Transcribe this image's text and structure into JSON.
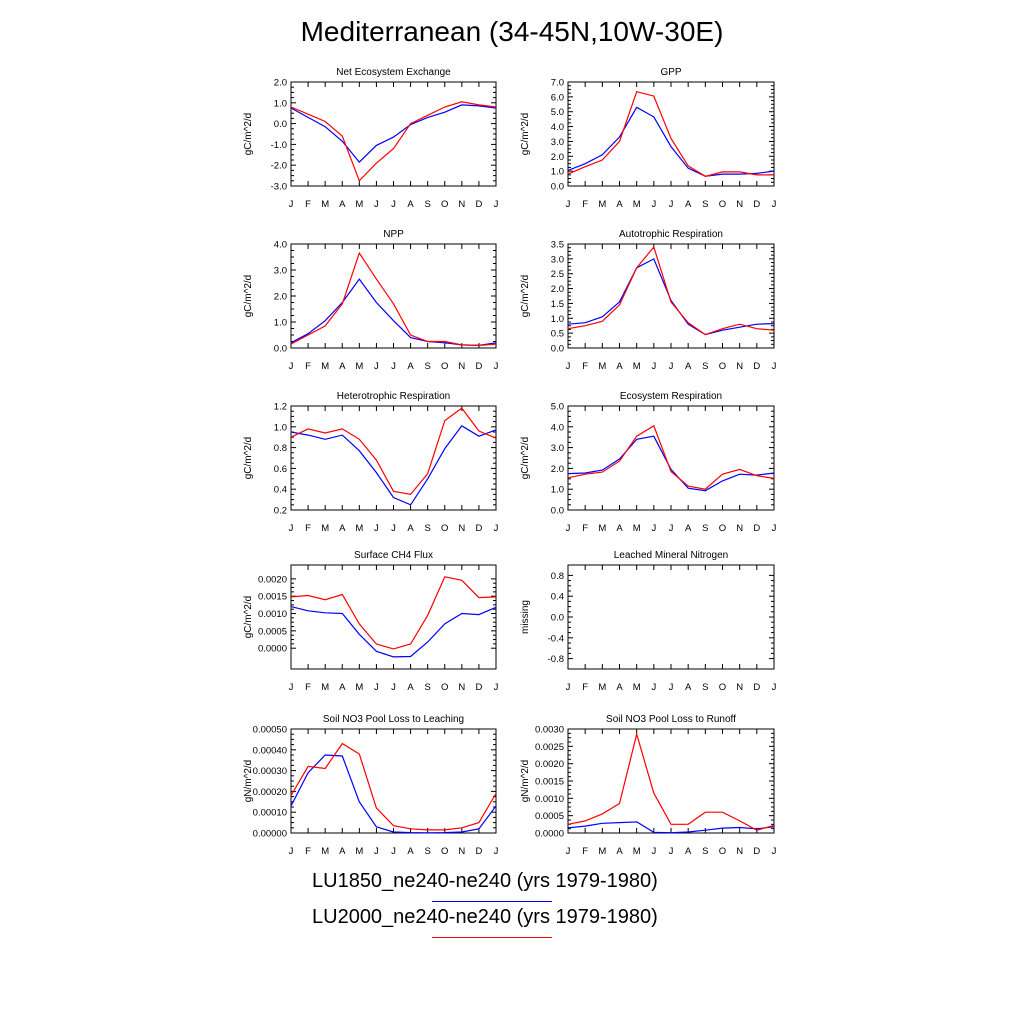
{
  "title": "Mediterranean (34-45N,10W-30E)",
  "colors": {
    "LU1850": "#0000ff",
    "LU2000": "#ff0000"
  },
  "legend": [
    {
      "label": "LU1850_ne240-ne240 (yrs 1979-1980)",
      "color": "#0000ff"
    },
    {
      "label": "LU2000_ne240-ne240 (yrs 1979-1980)",
      "color": "#ff0000"
    }
  ],
  "chart_data": [
    {
      "type": "line",
      "title": "Net Ecosystem Exchange",
      "ylabel": "gC/m^2/d",
      "x": [
        "J",
        "F",
        "M",
        "A",
        "M",
        "J",
        "J",
        "A",
        "S",
        "O",
        "N",
        "D",
        "J"
      ],
      "ylim": [
        -3.0,
        2.0
      ],
      "yticks": [
        -3.0,
        -2.0,
        -1.0,
        0.0,
        1.0,
        2.0
      ],
      "ytick_labels": [
        "-3.0",
        "-2.0",
        "-1.0",
        "0.0",
        "1.0",
        "2.0"
      ],
      "series": [
        {
          "name": "LU1850_ne240-ne240 (yrs 1979-1980)",
          "values": [
            0.75,
            0.3,
            -0.15,
            -0.85,
            -1.85,
            -1.05,
            -0.65,
            -0.05,
            0.3,
            0.55,
            0.9,
            0.85,
            0.75
          ]
        },
        {
          "name": "LU2000_ne240-ne240 (yrs 1979-1980)",
          "values": [
            0.8,
            0.45,
            0.1,
            -0.6,
            -2.75,
            -1.9,
            -1.2,
            0.0,
            0.4,
            0.8,
            1.05,
            0.9,
            0.8
          ]
        }
      ]
    },
    {
      "type": "line",
      "title": "GPP",
      "ylabel": "gC/m^2/d",
      "x": [
        "J",
        "F",
        "M",
        "A",
        "M",
        "J",
        "J",
        "A",
        "S",
        "O",
        "N",
        "D",
        "J"
      ],
      "ylim": [
        0.0,
        7.0
      ],
      "yticks": [
        0,
        1,
        2,
        3,
        4,
        5,
        6,
        7
      ],
      "ytick_labels": [
        "0.0",
        "1.0",
        "2.0",
        "3.0",
        "4.0",
        "5.0",
        "6.0",
        "7.0"
      ],
      "series": [
        {
          "name": "LU1850_ne240-ne240 (yrs 1979-1980)",
          "values": [
            1.05,
            1.5,
            2.1,
            3.3,
            5.3,
            4.65,
            2.65,
            1.2,
            0.65,
            0.8,
            0.8,
            0.85,
            1.0
          ]
        },
        {
          "name": "LU2000_ne240-ne240 (yrs 1979-1980)",
          "values": [
            0.8,
            1.3,
            1.75,
            3.0,
            6.35,
            6.05,
            3.2,
            1.35,
            0.65,
            0.95,
            0.95,
            0.75,
            0.75
          ]
        }
      ]
    },
    {
      "type": "line",
      "title": "NPP",
      "ylabel": "gC/m^2/d",
      "x": [
        "J",
        "F",
        "M",
        "A",
        "M",
        "J",
        "J",
        "A",
        "S",
        "O",
        "N",
        "D",
        "J"
      ],
      "ylim": [
        0.0,
        4.0
      ],
      "yticks": [
        0,
        1,
        2,
        3,
        4
      ],
      "ytick_labels": [
        "0.0",
        "1.0",
        "2.0",
        "3.0",
        "4.0"
      ],
      "series": [
        {
          "name": "LU1850_ne240-ne240 (yrs 1979-1980)",
          "values": [
            0.2,
            0.55,
            1.05,
            1.75,
            2.65,
            1.75,
            1.05,
            0.4,
            0.25,
            0.2,
            0.12,
            0.1,
            0.2
          ]
        },
        {
          "name": "LU2000_ne240-ne240 (yrs 1979-1980)",
          "values": [
            0.15,
            0.5,
            0.85,
            1.7,
            3.65,
            2.65,
            1.7,
            0.5,
            0.25,
            0.25,
            0.12,
            0.1,
            0.15
          ]
        }
      ]
    },
    {
      "type": "line",
      "title": "Autotrophic Respiration",
      "ylabel": "gC/m^2/d",
      "x": [
        "J",
        "F",
        "M",
        "A",
        "M",
        "J",
        "J",
        "A",
        "S",
        "O",
        "N",
        "D",
        "J"
      ],
      "ylim": [
        0.0,
        3.5
      ],
      "yticks": [
        0,
        0.5,
        1,
        1.5,
        2,
        2.5,
        3,
        3.5
      ],
      "ytick_labels": [
        "0.0",
        "0.5",
        "1.0",
        "1.5",
        "2.0",
        "2.5",
        "3.0",
        "3.5"
      ],
      "series": [
        {
          "name": "LU1850_ne240-ne240 (yrs 1979-1980)",
          "values": [
            0.8,
            0.85,
            1.05,
            1.55,
            2.7,
            3.0,
            1.6,
            0.8,
            0.45,
            0.6,
            0.7,
            0.8,
            0.82
          ]
        },
        {
          "name": "LU2000_ne240-ne240 (yrs 1979-1980)",
          "values": [
            0.65,
            0.75,
            0.9,
            1.45,
            2.7,
            3.4,
            1.55,
            0.85,
            0.45,
            0.65,
            0.8,
            0.65,
            0.6
          ]
        }
      ]
    },
    {
      "type": "line",
      "title": "Heterotrophic Respiration",
      "ylabel": "gC/m^2/d",
      "x": [
        "J",
        "F",
        "M",
        "A",
        "M",
        "J",
        "J",
        "A",
        "S",
        "O",
        "N",
        "D",
        "J"
      ],
      "ylim": [
        0.2,
        1.2
      ],
      "yticks": [
        0.2,
        0.4,
        0.6,
        0.8,
        1.0,
        1.2
      ],
      "ytick_labels": [
        "0.2",
        "0.4",
        "0.6",
        "0.8",
        "1.0",
        "1.2"
      ],
      "series": [
        {
          "name": "LU1850_ne240-ne240 (yrs 1979-1980)",
          "values": [
            0.95,
            0.92,
            0.88,
            0.92,
            0.77,
            0.56,
            0.32,
            0.25,
            0.5,
            0.79,
            1.01,
            0.91,
            0.97
          ]
        },
        {
          "name": "LU2000_ne240-ne240 (yrs 1979-1980)",
          "values": [
            0.9,
            0.98,
            0.94,
            0.98,
            0.88,
            0.68,
            0.38,
            0.35,
            0.55,
            1.06,
            1.18,
            0.96,
            0.89
          ]
        }
      ]
    },
    {
      "type": "line",
      "title": "Ecosystem Respiration",
      "ylabel": "gC/m^2/d",
      "x": [
        "J",
        "F",
        "M",
        "A",
        "M",
        "J",
        "J",
        "A",
        "S",
        "O",
        "N",
        "D",
        "J"
      ],
      "ylim": [
        0.0,
        5.0
      ],
      "yticks": [
        0,
        1,
        2,
        3,
        4,
        5
      ],
      "ytick_labels": [
        "0.0",
        "1.0",
        "2.0",
        "3.0",
        "4.0",
        "5.0"
      ],
      "series": [
        {
          "name": "LU1850_ne240-ne240 (yrs 1979-1980)",
          "values": [
            1.75,
            1.78,
            1.92,
            2.45,
            3.4,
            3.55,
            1.95,
            1.05,
            0.93,
            1.4,
            1.72,
            1.68,
            1.78
          ]
        },
        {
          "name": "LU2000_ne240-ne240 (yrs 1979-1980)",
          "values": [
            1.55,
            1.72,
            1.82,
            2.35,
            3.55,
            4.05,
            1.85,
            1.15,
            1.0,
            1.72,
            1.95,
            1.65,
            1.52
          ]
        }
      ]
    },
    {
      "type": "line",
      "title": "Surface CH4 Flux",
      "ylabel": "gC/m^2/d",
      "x": [
        "J",
        "F",
        "M",
        "A",
        "M",
        "J",
        "J",
        "A",
        "S",
        "O",
        "N",
        "D",
        "J"
      ],
      "ylim": [
        -0.0006,
        0.0024
      ],
      "yticks": [
        0,
        0.0005,
        0.001,
        0.0015,
        0.002
      ],
      "ytick_labels": [
        "0.0000",
        "0.0005",
        "0.0010",
        "0.0015",
        "0.0020"
      ],
      "series": [
        {
          "name": "LU1850_ne240-ne240 (yrs 1979-1980)",
          "values": [
            0.0012,
            0.00108,
            0.00102,
            0.001,
            0.0004,
            -9e-05,
            -0.00025,
            -0.00024,
            0.00018,
            0.0007,
            0.001,
            0.00097,
            0.00118
          ]
        },
        {
          "name": "LU2000_ne240-ne240 (yrs 1979-1980)",
          "values": [
            0.00148,
            0.00152,
            0.0014,
            0.00155,
            0.0007,
            0.00012,
            -2e-05,
            0.00012,
            0.00095,
            0.00206,
            0.00196,
            0.00146,
            0.00148
          ]
        }
      ]
    },
    {
      "type": "line",
      "title": "Leached Mineral Nitrogen",
      "ylabel": "missing",
      "x": [
        "J",
        "F",
        "M",
        "A",
        "M",
        "J",
        "J",
        "A",
        "S",
        "O",
        "N",
        "D",
        "J"
      ],
      "ylim": [
        -1.0,
        1.0
      ],
      "yticks": [
        -0.8,
        -0.4,
        0,
        0.4,
        0.8
      ],
      "ytick_labels": [
        "-0.8",
        "-0.4",
        "0.0",
        "0.4",
        "0.8"
      ],
      "series": []
    },
    {
      "type": "line",
      "title": "Soil NO3 Pool Loss to Leaching",
      "ylabel": "gN/m^2/d",
      "x": [
        "J",
        "F",
        "M",
        "A",
        "M",
        "J",
        "J",
        "A",
        "S",
        "O",
        "N",
        "D",
        "J"
      ],
      "ylim": [
        0.0,
        0.0005
      ],
      "yticks": [
        0,
        0.0001,
        0.0002,
        0.0003,
        0.0004,
        0.0005
      ],
      "ytick_labels": [
        "0.00000",
        "0.00010",
        "0.00020",
        "0.00030",
        "0.00040",
        "0.00050"
      ],
      "series": [
        {
          "name": "LU1850_ne240-ne240 (yrs 1979-1980)",
          "values": [
            0.00013,
            0.00029,
            0.000375,
            0.00037,
            0.00015,
            3e-05,
            5e-06,
            2e-06,
            1e-06,
            2e-06,
            5e-06,
            2e-05,
            0.00013
          ]
        },
        {
          "name": "LU2000_ne240-ne240 (yrs 1979-1980)",
          "values": [
            0.00018,
            0.00032,
            0.00031,
            0.00043,
            0.00038,
            0.00012,
            3.5e-05,
            2e-05,
            1.5e-05,
            1.5e-05,
            2.5e-05,
            5e-05,
            0.00019
          ]
        }
      ]
    },
    {
      "type": "line",
      "title": "Soil NO3 Pool Loss to Runoff",
      "ylabel": "gN/m^2/d",
      "x": [
        "J",
        "F",
        "M",
        "A",
        "M",
        "J",
        "J",
        "A",
        "S",
        "O",
        "N",
        "D",
        "J"
      ],
      "ylim": [
        0.0,
        0.003
      ],
      "yticks": [
        0,
        0.0005,
        0.001,
        0.0015,
        0.002,
        0.0025,
        0.003
      ],
      "ytick_labels": [
        "0.0000",
        "0.0005",
        "0.0010",
        "0.0015",
        "0.0020",
        "0.0025",
        "0.0030"
      ],
      "series": [
        {
          "name": "LU1850_ne240-ne240 (yrs 1979-1980)",
          "values": [
            0.00015,
            0.0002,
            0.00028,
            0.0003,
            0.00032,
            2e-05,
            1e-05,
            3e-05,
            8e-05,
            0.00014,
            0.00016,
            0.00012,
            0.00018
          ]
        },
        {
          "name": "LU2000_ne240-ne240 (yrs 1979-1980)",
          "values": [
            0.00025,
            0.00035,
            0.00055,
            0.00085,
            0.00285,
            0.00115,
            0.00025,
            0.00025,
            0.0006,
            0.0006,
            0.00035,
            8e-05,
            0.00022
          ]
        }
      ]
    }
  ]
}
